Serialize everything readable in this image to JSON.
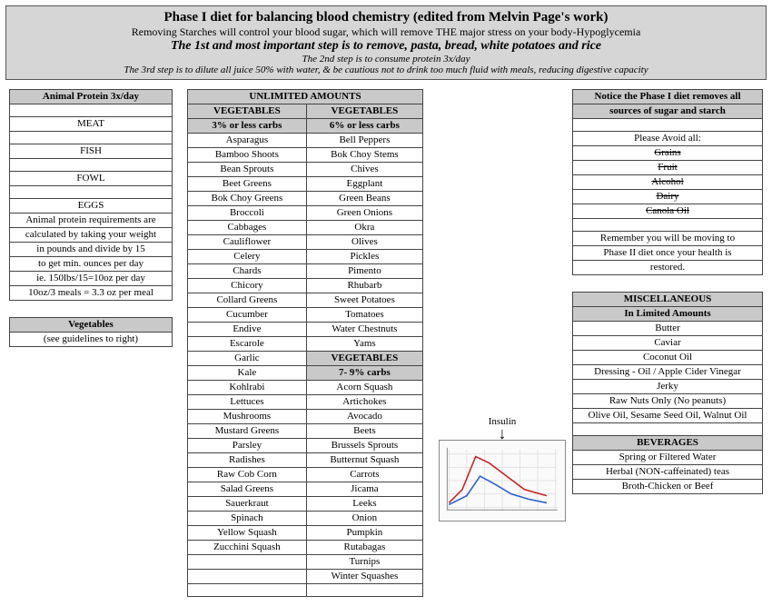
{
  "header": {
    "title": "Phase I diet for balancing blood chemistry (edited from Melvin Page's work)",
    "line2": "Removing Starches will control your blood sugar, which will remove THE major stress on your body-Hypoglycemia",
    "line3": "The 1st and most important step is to remove, pasta, bread, white potatoes and rice",
    "line4": "The 2nd step is to consume protein 3x/day",
    "line5": "The 3rd step is to dilute all juice 50% with water, & be cautious not to drink too much fluid with meals, reducing digestive capacity"
  },
  "left": {
    "protein_header": "Animal Protein 3x/day",
    "protein_rows": [
      "",
      "MEAT",
      "",
      "FISH",
      "",
      "FOWL",
      "",
      "EGGS",
      "Animal protein requirements are",
      "calculated by taking your weight",
      "in pounds and divide by 15",
      "to get min. ounces per day",
      "ie. 150lbs/15=10oz per day",
      "10oz/3 meals = 3.3 oz per meal"
    ],
    "veg_header": "Vegetables",
    "veg_note": "(see guidelines to right)"
  },
  "mid": {
    "top_header": "UNLIMITED AMOUNTS",
    "col_a_hdr": "VEGETABLES",
    "col_b_hdr": "VEGETABLES",
    "col_a_sub": "3% or less carbs",
    "col_b_sub": "6% or less carbs",
    "col_a": [
      "Asparagus",
      "Bamboo Shoots",
      "Bean Sprouts",
      "Beet Greens",
      "Bok Choy Greens",
      "Broccoli",
      "Cabbages",
      "Cauliflower",
      "Celery",
      "Chards",
      "Chicory",
      "Collard Greens",
      "Cucumber",
      "Endive",
      "Escarole",
      "Garlic",
      "Kale",
      "Kohlrabi",
      "Lettuces",
      "Mushrooms",
      "Mustard Greens",
      "Parsley",
      "Radishes",
      "Raw Cob Corn",
      "Salad Greens",
      "Sauerkraut",
      "Spinach",
      "Yellow Squash",
      "Zucchini Squash",
      "",
      "",
      ""
    ],
    "col_b_six": [
      "Bell Peppers",
      "Bok Choy Stems",
      "Chives",
      "Eggplant",
      "Green Beans",
      "Green Onions",
      "Okra",
      "Olives",
      "Pickles",
      "Pimento",
      "Rhubarb",
      "Sweet Potatoes",
      "Tomatoes",
      "Water Chestnuts",
      "Yams"
    ],
    "col_b_hdr2": "VEGETABLES",
    "col_b_sub2": "7- 9% carbs",
    "col_b_seven": [
      "Acorn Squash",
      "Artichokes",
      "Avocado",
      "Beets",
      "Brussels Sprouts",
      "Butternut Squash",
      "Carrots",
      "Jicama",
      "Leeks",
      "Onion",
      "Pumpkin",
      "Rutabagas",
      "Turnips",
      "Winter Squashes"
    ]
  },
  "right": {
    "notice_hdr": "Notice the Phase I diet removes all",
    "notice_hdr2": "sources of sugar and starch",
    "avoid_label": "Please Avoid all:",
    "avoid": [
      "Grains",
      "Fruit",
      "Alcohol",
      "Dairy",
      "Canola Oil"
    ],
    "remember1": "Remember you will be moving to",
    "remember2": "Phase II diet once your health is",
    "remember3": "restored.",
    "misc_hdr": "MISCELLANEOUS",
    "misc_sub": "In Limited Amounts",
    "misc": [
      "Butter",
      "Caviar",
      "Coconut Oil",
      "Dressing - Oil / Apple Cider Vinegar",
      "Jerky",
      "Raw Nuts Only  (No peanuts)",
      "Olive Oil, Sesame Seed Oil, Walnut Oil"
    ],
    "bev_hdr": "BEVERAGES",
    "bev": [
      "Spring or Filtered Water",
      "Herbal (NON-caffeinated) teas",
      "Broth-Chicken or Beef"
    ]
  },
  "chart": {
    "label": "Insulin",
    "width": 140,
    "height": 90,
    "bg": "#fafafa",
    "grid_color": "#e2e2e2",
    "axis_color": "#888",
    "series": [
      {
        "color": "#cc2020",
        "points": [
          [
            10,
            70
          ],
          [
            25,
            55
          ],
          [
            40,
            18
          ],
          [
            55,
            25
          ],
          [
            75,
            40
          ],
          [
            95,
            55
          ],
          [
            120,
            62
          ]
        ]
      },
      {
        "color": "#2a5fd0",
        "points": [
          [
            10,
            72
          ],
          [
            30,
            62
          ],
          [
            45,
            40
          ],
          [
            60,
            48
          ],
          [
            80,
            60
          ],
          [
            100,
            66
          ],
          [
            120,
            70
          ]
        ]
      }
    ],
    "xticks": [
      10,
      30,
      50,
      70,
      90,
      110,
      130
    ]
  }
}
